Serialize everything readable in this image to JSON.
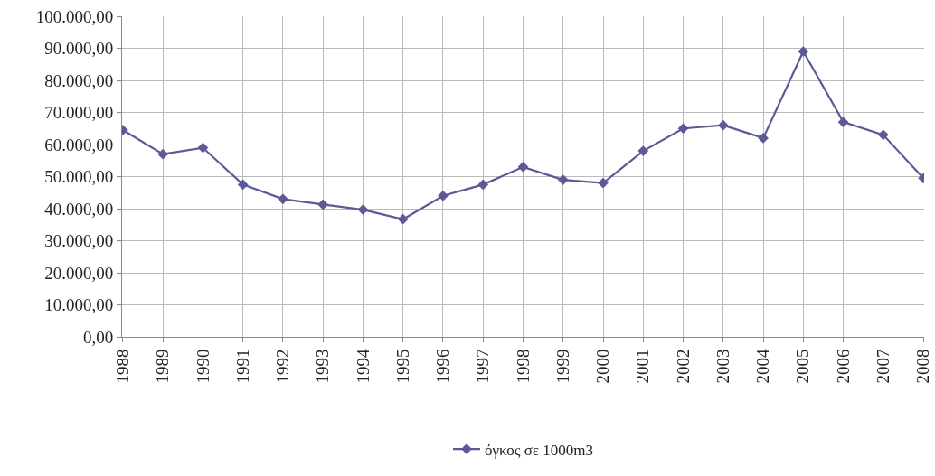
{
  "chart_data": {
    "type": "line",
    "categories": [
      "1988",
      "1989",
      "1990",
      "1991",
      "1992",
      "1993",
      "1994",
      "1995",
      "1996",
      "1997",
      "1998",
      "1999",
      "2000",
      "2001",
      "2002",
      "2003",
      "2004",
      "2005",
      "2006",
      "2007",
      "2008"
    ],
    "series": [
      {
        "name": "όγκος σε 1000m3",
        "color": "#5c5a95",
        "values": [
          64500,
          57000,
          59000,
          47500,
          43000,
          41300,
          39700,
          36700,
          44000,
          47500,
          53000,
          49000,
          48000,
          58000,
          65000,
          66000,
          62000,
          89000,
          67000,
          63000,
          49500
        ]
      }
    ],
    "ylim": [
      0,
      100000
    ],
    "yticks": [
      {
        "value": 0,
        "label": "0,00"
      },
      {
        "value": 10000,
        "label": "10.000,00"
      },
      {
        "value": 20000,
        "label": "20.000,00"
      },
      {
        "value": 30000,
        "label": "30.000,00"
      },
      {
        "value": 40000,
        "label": "40.000,00"
      },
      {
        "value": 50000,
        "label": "50.000,00"
      },
      {
        "value": 60000,
        "label": "60.000,00"
      },
      {
        "value": 70000,
        "label": "70.000,00"
      },
      {
        "value": 80000,
        "label": "80.000,00"
      },
      {
        "value": 90000,
        "label": "90.000,00"
      },
      {
        "value": 100000,
        "label": "100.000,00"
      }
    ],
    "grid": true,
    "legend": "bottom",
    "marker": "diamond",
    "line_style": "solid"
  }
}
